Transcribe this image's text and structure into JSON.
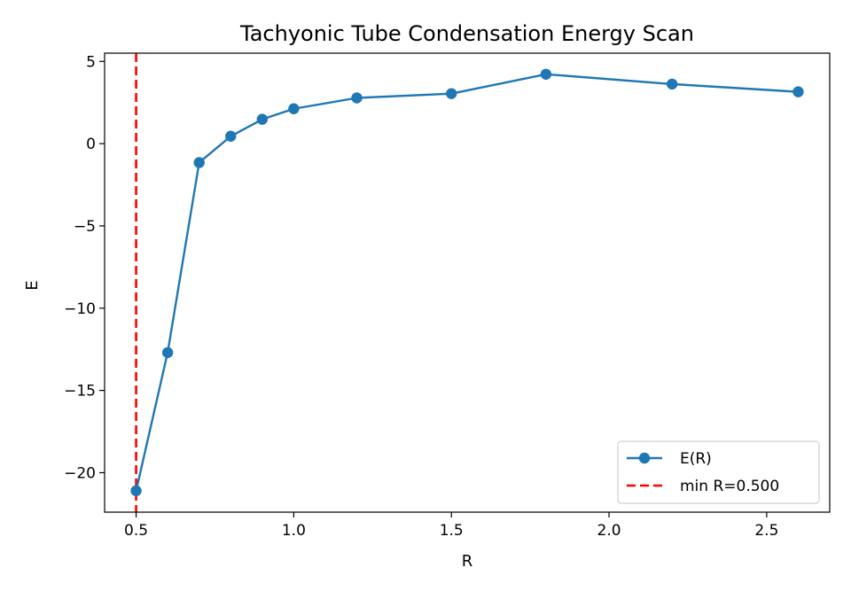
{
  "chart_data": {
    "type": "line",
    "title": "Tachyonic Tube Condensation Energy Scan",
    "xlabel": "R",
    "ylabel": "E",
    "xlim": [
      0.4,
      2.7
    ],
    "ylim": [
      -22.4,
      5.5
    ],
    "x_ticks": [
      0.5,
      1.0,
      1.5,
      2.0,
      2.5
    ],
    "x_tick_labels": [
      "0.5",
      "1.0",
      "1.5",
      "2.0",
      "2.5"
    ],
    "y_ticks": [
      5,
      0,
      -5,
      -10,
      -15,
      -20
    ],
    "y_tick_labels": [
      "5",
      "0",
      "−5",
      "−10",
      "−15",
      "−20"
    ],
    "grid": false,
    "legend_position": "lower-right",
    "series": [
      {
        "name": "E(R)",
        "color": "#1f77b4",
        "marker": "circle",
        "x": [
          0.5,
          0.6,
          0.7,
          0.8,
          0.9,
          1.0,
          1.2,
          1.5,
          1.8,
          2.2,
          2.6
        ],
        "y": [
          -21.1,
          -12.7,
          -1.15,
          0.45,
          1.48,
          2.12,
          2.78,
          3.04,
          4.22,
          3.62,
          3.15
        ]
      }
    ],
    "vlines": [
      {
        "name": "min R=0.500",
        "x": 0.5,
        "color": "#ff0000",
        "style": "dashed"
      }
    ]
  }
}
